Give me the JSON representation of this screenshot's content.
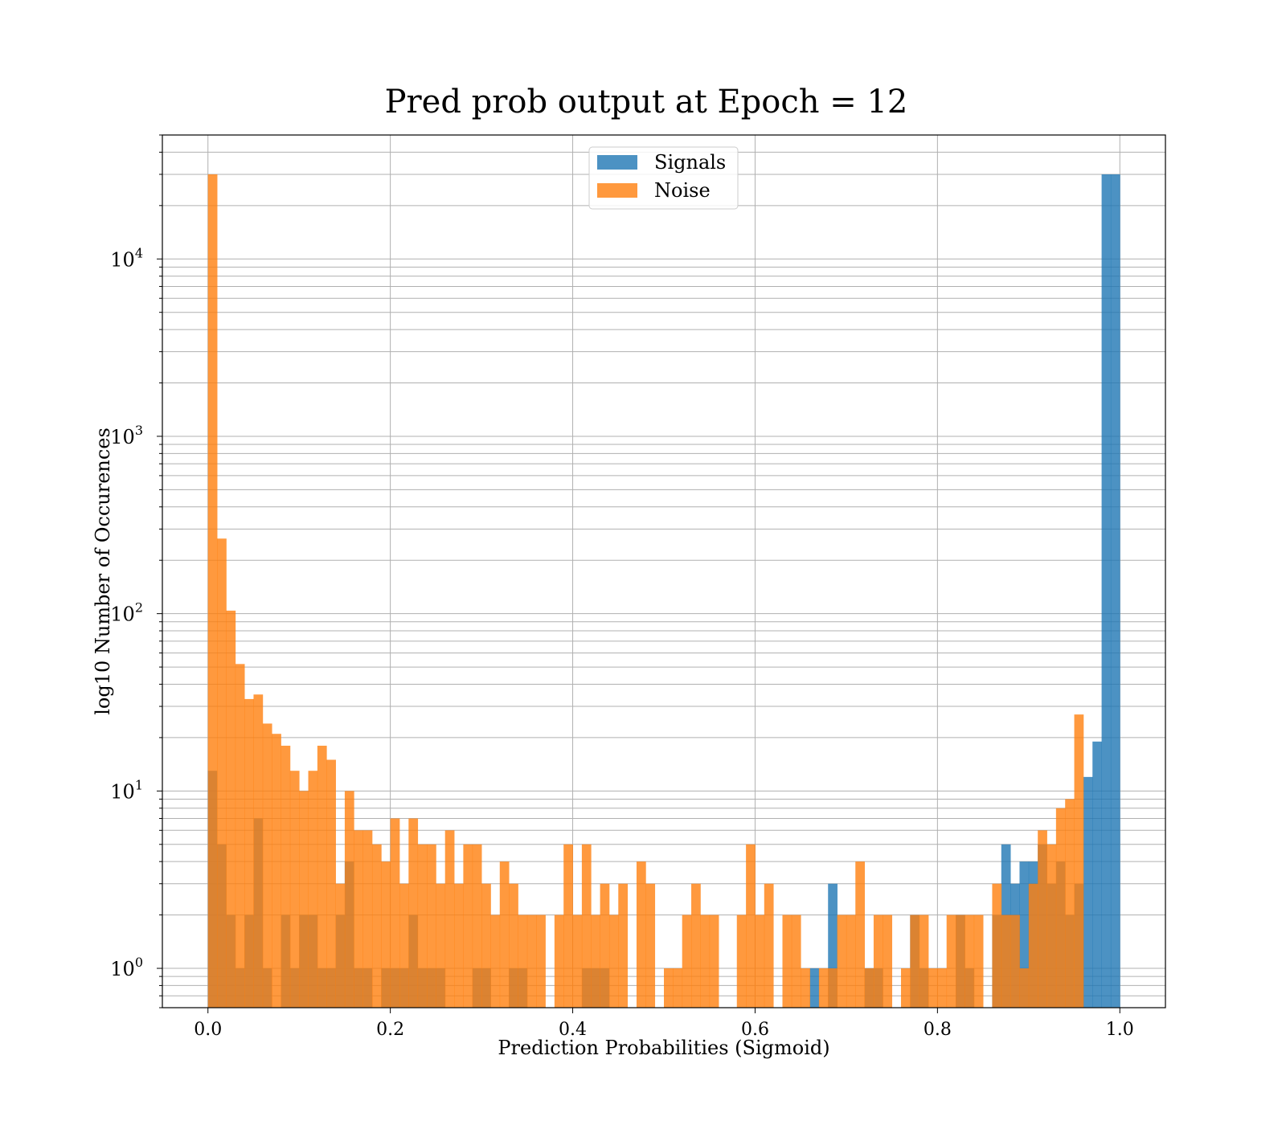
{
  "chart_data": {
    "type": "bar",
    "title": "Pred prob output at Epoch = 12",
    "xlabel": "Prediction Probabilities (Sigmoid)",
    "ylabel": "log10 Number of Occurences",
    "x_scale": "linear",
    "y_scale": "log",
    "xlim": [
      -0.05,
      1.05
    ],
    "ylim": [
      0.6,
      50000
    ],
    "x_ticks": [
      "0.0",
      "0.2",
      "0.4",
      "0.6",
      "0.8",
      "1.0"
    ],
    "y_ticks": [
      {
        "base": "10",
        "exp": "0",
        "value": 1
      },
      {
        "base": "10",
        "exp": "1",
        "value": 10
      },
      {
        "base": "10",
        "exp": "2",
        "value": 100
      },
      {
        "base": "10",
        "exp": "3",
        "value": 1000
      },
      {
        "base": "10",
        "exp": "4",
        "value": 10000
      }
    ],
    "grid": true,
    "legend_position": "top-center",
    "bins": 100,
    "bin_range": [
      0,
      1
    ],
    "series": [
      {
        "name": "Signals",
        "color": "#1f77b4",
        "opacity": 0.8,
        "values": [
          13,
          5,
          2,
          1,
          2,
          7,
          1,
          0,
          2,
          1,
          2,
          2,
          1,
          1,
          2,
          4,
          1,
          1,
          0,
          1,
          1,
          1,
          2,
          1,
          1,
          1,
          0,
          0,
          0,
          1,
          1,
          0,
          0,
          1,
          1,
          0,
          0,
          0,
          0,
          0,
          0,
          1,
          1,
          1,
          0,
          0,
          0,
          0,
          0,
          0,
          0,
          0,
          0,
          0,
          0,
          0,
          0,
          0,
          0,
          0,
          0,
          0,
          0,
          0,
          0,
          0,
          1,
          0,
          3,
          0,
          0,
          0,
          1,
          1,
          0,
          0,
          0,
          2,
          1,
          0,
          0,
          0,
          2,
          1,
          0,
          0,
          2,
          5,
          3,
          4,
          4,
          5,
          3,
          4,
          2,
          3,
          12,
          19,
          30000,
          30000
        ]
      },
      {
        "name": "Noise",
        "color": "#ff7f0e",
        "opacity": 0.8,
        "values": [
          30000,
          265,
          104,
          52,
          33,
          35,
          24,
          21,
          18,
          13,
          10,
          13,
          18,
          15,
          3,
          10,
          6,
          6,
          5,
          4,
          7,
          3,
          7,
          5,
          5,
          3,
          6,
          3,
          5,
          5,
          3,
          2,
          4,
          3,
          2,
          2,
          2,
          0,
          2,
          5,
          2,
          5,
          2,
          3,
          2,
          3,
          0,
          4,
          3,
          0,
          1,
          1,
          2,
          3,
          2,
          2,
          0,
          0,
          2,
          5,
          2,
          3,
          0,
          2,
          2,
          1,
          0,
          1,
          1,
          2,
          2,
          4,
          1,
          2,
          2,
          0,
          1,
          2,
          2,
          1,
          1,
          2,
          2,
          2,
          2,
          0,
          3,
          2,
          2,
          1,
          3,
          6,
          5,
          8,
          9,
          27,
          0,
          0,
          0,
          0
        ]
      }
    ]
  }
}
